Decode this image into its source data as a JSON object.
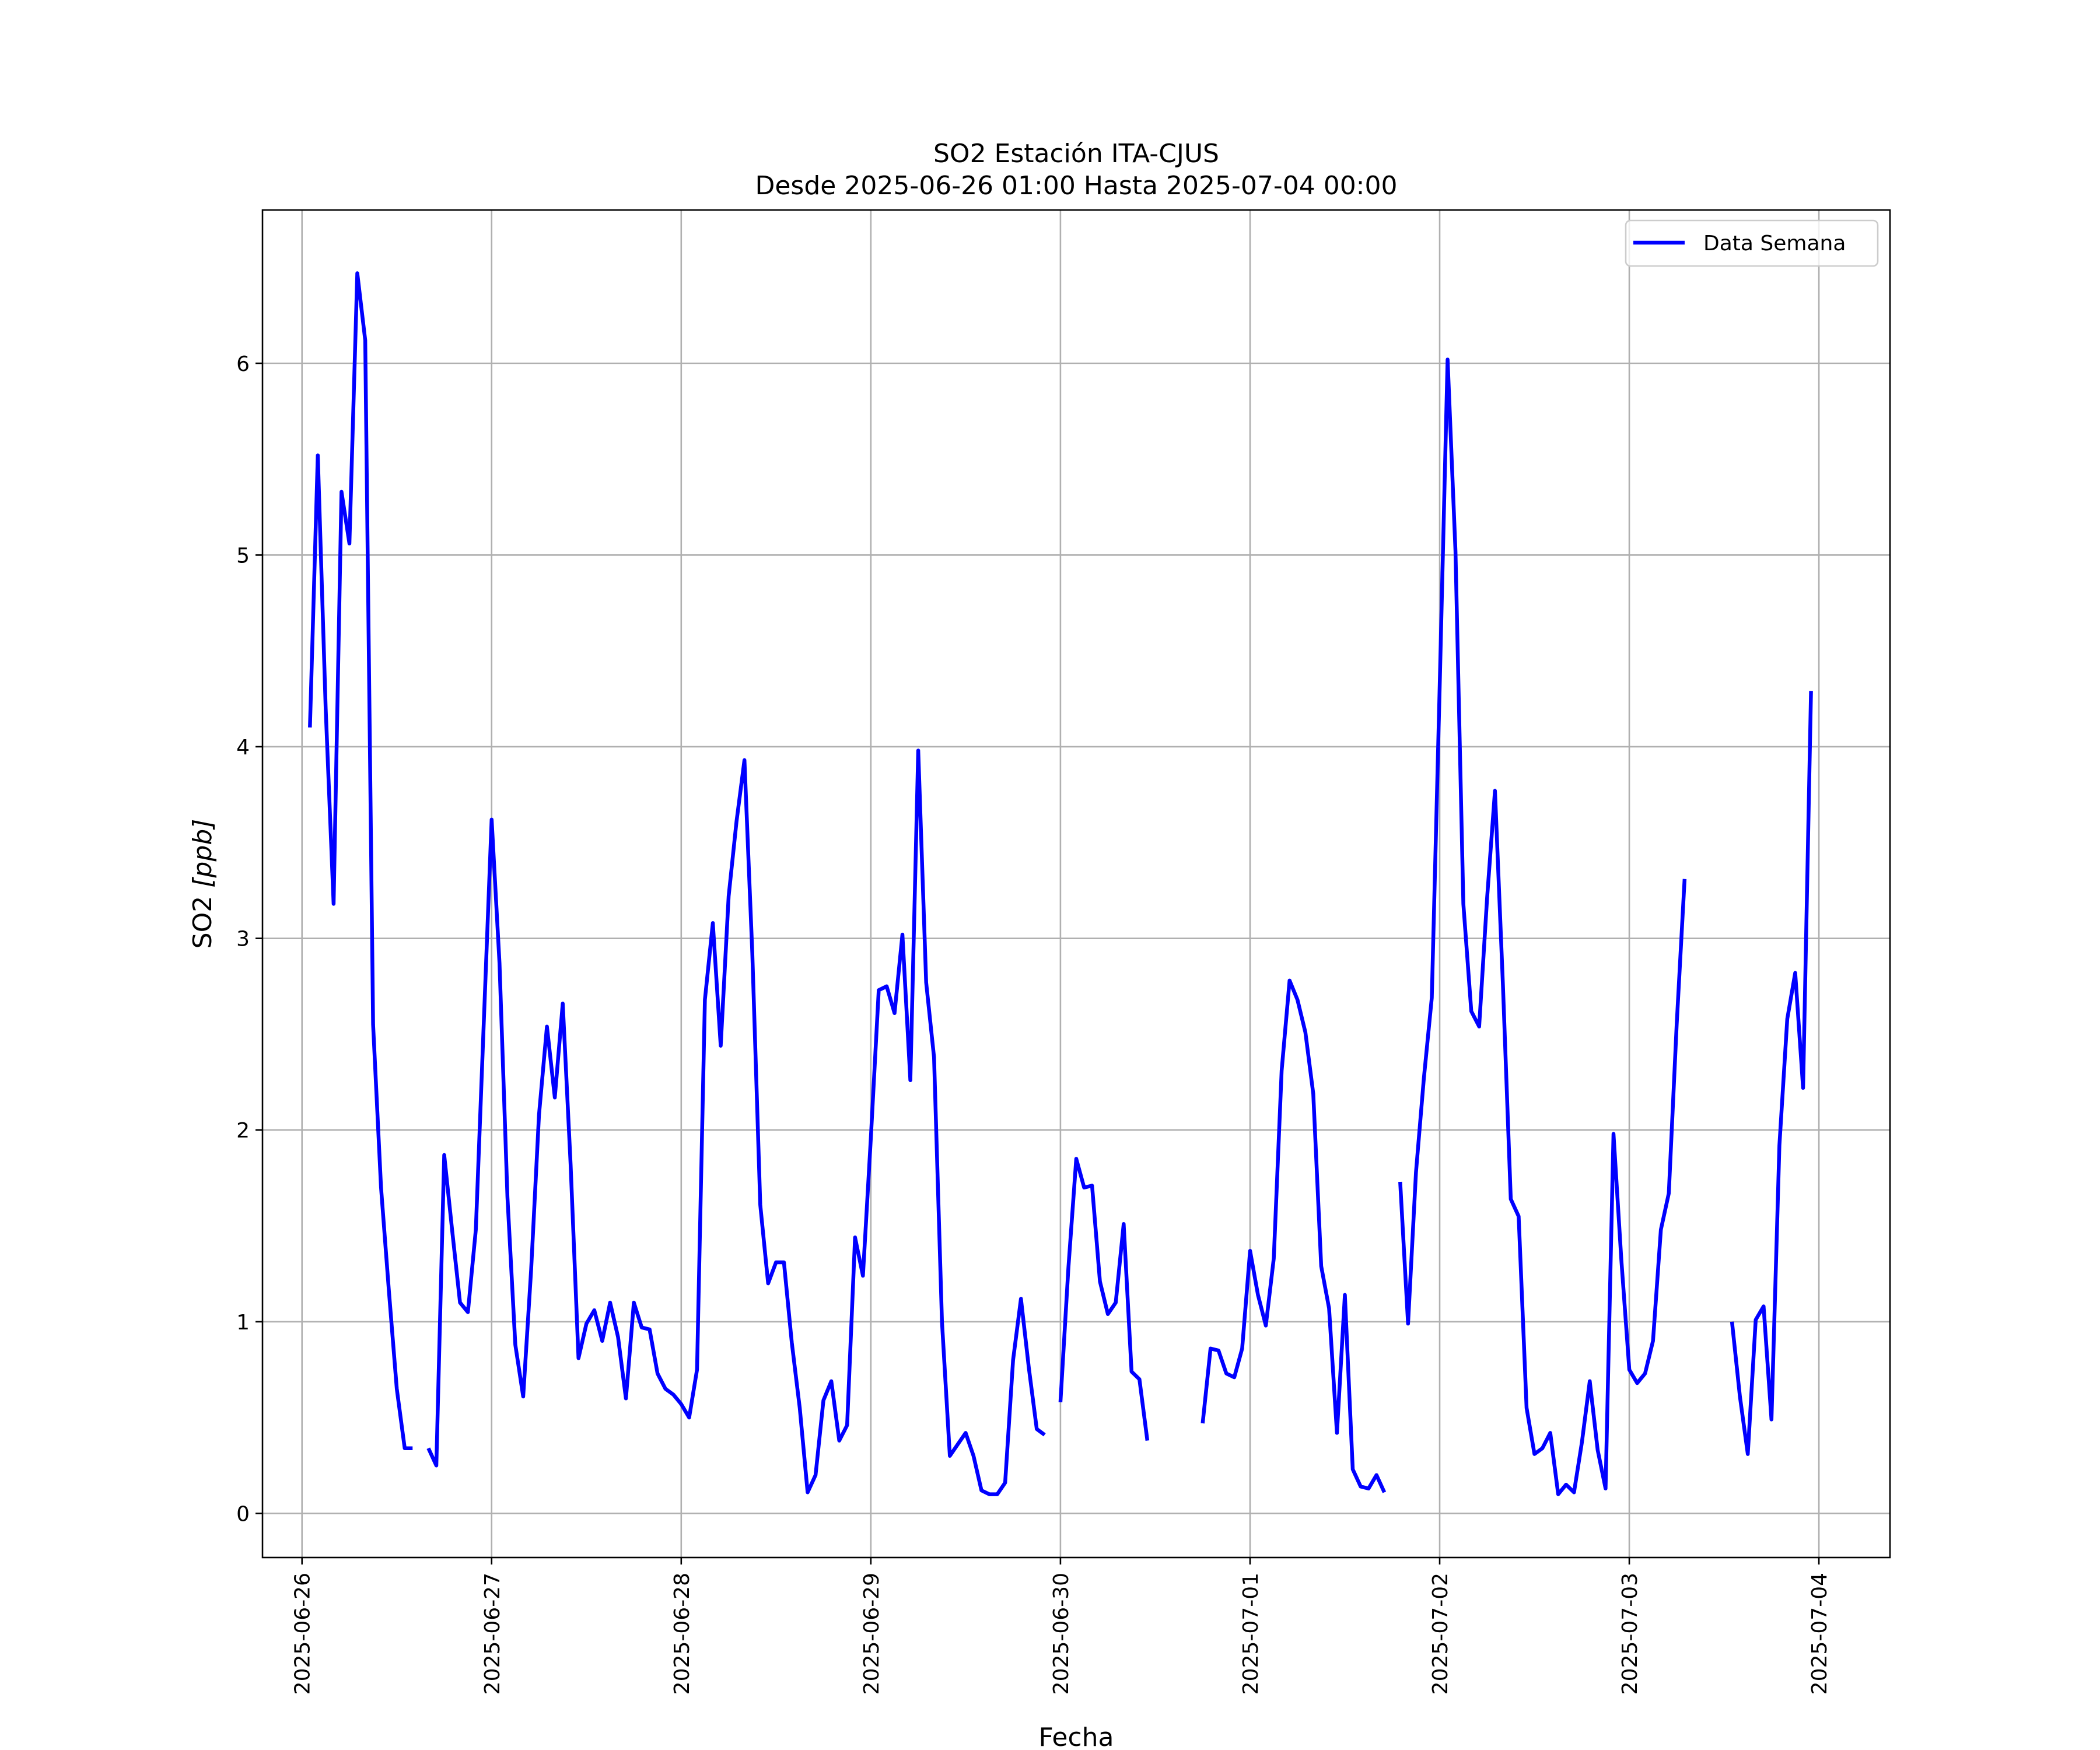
{
  "chart_data": {
    "type": "line",
    "title": "SO2 Estación ITA-CJUS",
    "subtitle": "Desde 2025-06-26 01:00 Hasta 2025-07-04 00:00",
    "xlabel": "Fecha",
    "ylabel": "SO2 [ppb]",
    "ylabel_main": "SO2 ",
    "ylabel_unit": "[ppb]",
    "x_type": "datetime",
    "xlim": [
      "2025-06-25 19:00",
      "2025-07-04 09:00"
    ],
    "ylim": [
      -0.23,
      6.8
    ],
    "x_ticks": [
      "2025-06-26",
      "2025-06-27",
      "2025-06-28",
      "2025-06-29",
      "2025-06-30",
      "2025-07-01",
      "2025-07-02",
      "2025-07-03",
      "2025-07-04"
    ],
    "y_ticks": [
      "0",
      "1",
      "2",
      "3",
      "4",
      "5",
      "6"
    ],
    "grid": true,
    "legend": {
      "position": "upper-right",
      "entries": [
        "Data Semana"
      ]
    },
    "series": [
      {
        "name": "Data Semana",
        "color": "#0000ff",
        "start": "2025-06-26 01:00",
        "interval_hours": 1,
        "values": [
          4.1,
          5.52,
          4.2,
          3.18,
          5.33,
          5.06,
          6.47,
          6.12,
          2.55,
          1.7,
          1.16,
          0.65,
          0.34,
          0.34,
          null,
          0.34,
          0.25,
          1.87,
          1.48,
          1.1,
          1.05,
          1.48,
          2.55,
          3.62,
          2.87,
          1.65,
          0.88,
          0.61,
          1.27,
          2.08,
          2.54,
          2.17,
          2.66,
          1.82,
          0.81,
          0.99,
          1.06,
          0.9,
          1.1,
          0.92,
          0.6,
          1.1,
          0.97,
          0.96,
          0.73,
          0.65,
          0.62,
          0.57,
          0.5,
          0.75,
          2.68,
          3.08,
          2.44,
          3.22,
          3.61,
          3.93,
          2.92,
          1.61,
          1.2,
          1.31,
          1.31,
          0.89,
          0.55,
          0.11,
          0.2,
          0.59,
          0.69,
          0.38,
          0.46,
          1.44,
          1.24,
          1.96,
          2.73,
          2.75,
          2.61,
          3.02,
          2.26,
          3.98,
          2.77,
          2.38,
          1.0,
          0.3,
          0.36,
          0.42,
          0.3,
          0.12,
          0.1,
          0.1,
          0.16,
          0.8,
          1.12,
          0.76,
          0.44,
          0.41,
          null,
          0.58,
          1.28,
          1.85,
          1.7,
          1.71,
          1.21,
          1.04,
          1.1,
          1.51,
          0.74,
          0.7,
          0.38,
          null,
          null,
          null,
          null,
          null,
          null,
          0.47,
          0.86,
          0.85,
          0.73,
          0.71,
          0.86,
          1.37,
          1.14,
          0.98,
          1.33,
          2.31,
          2.78,
          2.68,
          2.51,
          2.19,
          1.29,
          1.07,
          0.42,
          1.14,
          0.23,
          0.14,
          0.13,
          0.2,
          0.11,
          null,
          1.73,
          0.99,
          1.78,
          2.27,
          2.69,
          4.31,
          6.02,
          5.02,
          3.18,
          2.62,
          2.54,
          3.21,
          3.77,
          2.76,
          1.64,
          1.55,
          0.55,
          0.31,
          0.34,
          0.42,
          0.1,
          0.15,
          0.11,
          0.37,
          0.69,
          0.33,
          0.13,
          1.98,
          1.32,
          0.75,
          0.68,
          0.73,
          0.9,
          1.48,
          1.67,
          2.55,
          3.31,
          null,
          null,
          null,
          null,
          null,
          1.0,
          0.61,
          0.31,
          1.01,
          1.08,
          0.49,
          1.92,
          2.58,
          2.82,
          2.22,
          4.29
        ]
      }
    ]
  }
}
